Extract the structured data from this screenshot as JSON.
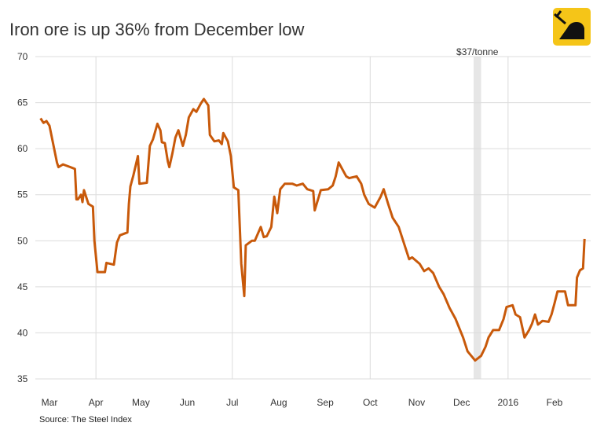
{
  "chart_data": {
    "type": "line",
    "title": "Iron ore is up 36% from December low",
    "source": "Source: The Steel Index",
    "annotation": {
      "label": "$37/tonne",
      "range": [
        283,
        288
      ]
    },
    "xlim": [
      -9,
      358
    ],
    "xticks": [
      {
        "value": 0,
        "label": "Mar"
      },
      {
        "value": 31,
        "label": "Apr"
      },
      {
        "value": 61,
        "label": "May"
      },
      {
        "value": 92,
        "label": "Jun"
      },
      {
        "value": 122,
        "label": "Jul"
      },
      {
        "value": 153,
        "label": "Aug"
      },
      {
        "value": 184,
        "label": "Sep"
      },
      {
        "value": 214,
        "label": "Oct"
      },
      {
        "value": 245,
        "label": "Nov"
      },
      {
        "value": 275,
        "label": "Dec"
      },
      {
        "value": 306,
        "label": "2016"
      },
      {
        "value": 337,
        "label": "Feb"
      }
    ],
    "xgrid": [
      31,
      122,
      214,
      306
    ],
    "ylim": [
      35,
      70
    ],
    "yticks": [
      35,
      40,
      45,
      50,
      55,
      60,
      65,
      70
    ],
    "grid": true,
    "series": [
      {
        "color": "#c8590a",
        "x": [
          -6,
          -4,
          -2,
          0,
          5,
          6,
          9,
          14,
          17,
          18,
          19,
          21,
          22,
          23,
          26,
          29,
          30,
          32,
          37,
          38,
          43,
          45,
          47,
          52,
          53,
          54,
          56,
          59,
          60,
          65,
          67,
          69,
          72,
          74,
          75,
          77,
          79,
          80,
          82,
          84,
          86,
          89,
          91,
          93,
          96,
          98,
          101,
          103,
          106,
          107,
          110,
          113,
          115,
          116,
          119,
          121,
          123,
          126,
          128,
          130,
          131,
          135,
          137,
          141,
          143,
          145,
          148,
          150,
          152,
          154,
          157,
          162,
          165,
          169,
          172,
          176,
          177,
          181,
          186,
          189,
          191,
          193,
          198,
          200,
          205,
          208,
          210,
          213,
          217,
          221,
          223,
          226,
          229,
          233,
          236,
          240,
          242,
          247,
          250,
          253,
          256,
          260,
          263,
          267,
          271,
          276,
          279,
          284,
          288,
          291,
          293,
          296,
          300,
          303,
          305,
          309,
          311,
          314,
          317,
          320,
          322,
          324,
          326,
          329,
          333,
          335,
          337,
          339,
          344,
          346,
          351,
          352,
          354,
          356,
          357
        ],
        "values": [
          63.3,
          62.8,
          63.0,
          62.5,
          58.5,
          58.0,
          58.3,
          58.0,
          57.8,
          54.5,
          54.5,
          55.0,
          54.2,
          55.5,
          54.0,
          53.7,
          50.0,
          46.6,
          46.6,
          47.6,
          47.4,
          49.8,
          50.6,
          50.9,
          54.0,
          55.9,
          57.1,
          59.2,
          56.2,
          56.3,
          60.3,
          61.0,
          62.7,
          62.0,
          60.7,
          60.6,
          58.6,
          58.0,
          59.5,
          61.2,
          62.0,
          60.3,
          61.5,
          63.4,
          64.3,
          64.0,
          64.9,
          65.4,
          64.7,
          61.5,
          60.8,
          60.9,
          60.5,
          61.7,
          60.8,
          59.2,
          55.8,
          55.5,
          47.5,
          44.0,
          49.5,
          50.0,
          50.0,
          51.5,
          50.4,
          50.5,
          51.5,
          54.8,
          53.0,
          55.6,
          56.2,
          56.2,
          56.0,
          56.2,
          55.6,
          55.4,
          53.3,
          55.5,
          55.6,
          56.0,
          57.0,
          58.5,
          57.0,
          56.8,
          57.0,
          56.2,
          55.0,
          54.0,
          53.6,
          54.8,
          55.6,
          54.0,
          52.5,
          51.5,
          50.0,
          48.0,
          48.2,
          47.5,
          46.7,
          47.0,
          46.5,
          45.0,
          44.2,
          42.7,
          41.5,
          39.5,
          38.0,
          37.0,
          37.5,
          38.5,
          39.5,
          40.3,
          40.3,
          41.5,
          42.8,
          43.0,
          42.0,
          41.7,
          39.5,
          40.3,
          41.0,
          42.0,
          40.9,
          41.3,
          41.2,
          42.0,
          43.2,
          44.5,
          44.5,
          43.0,
          43.0,
          46.0,
          46.8,
          47.0,
          50.2
        ]
      }
    ]
  }
}
